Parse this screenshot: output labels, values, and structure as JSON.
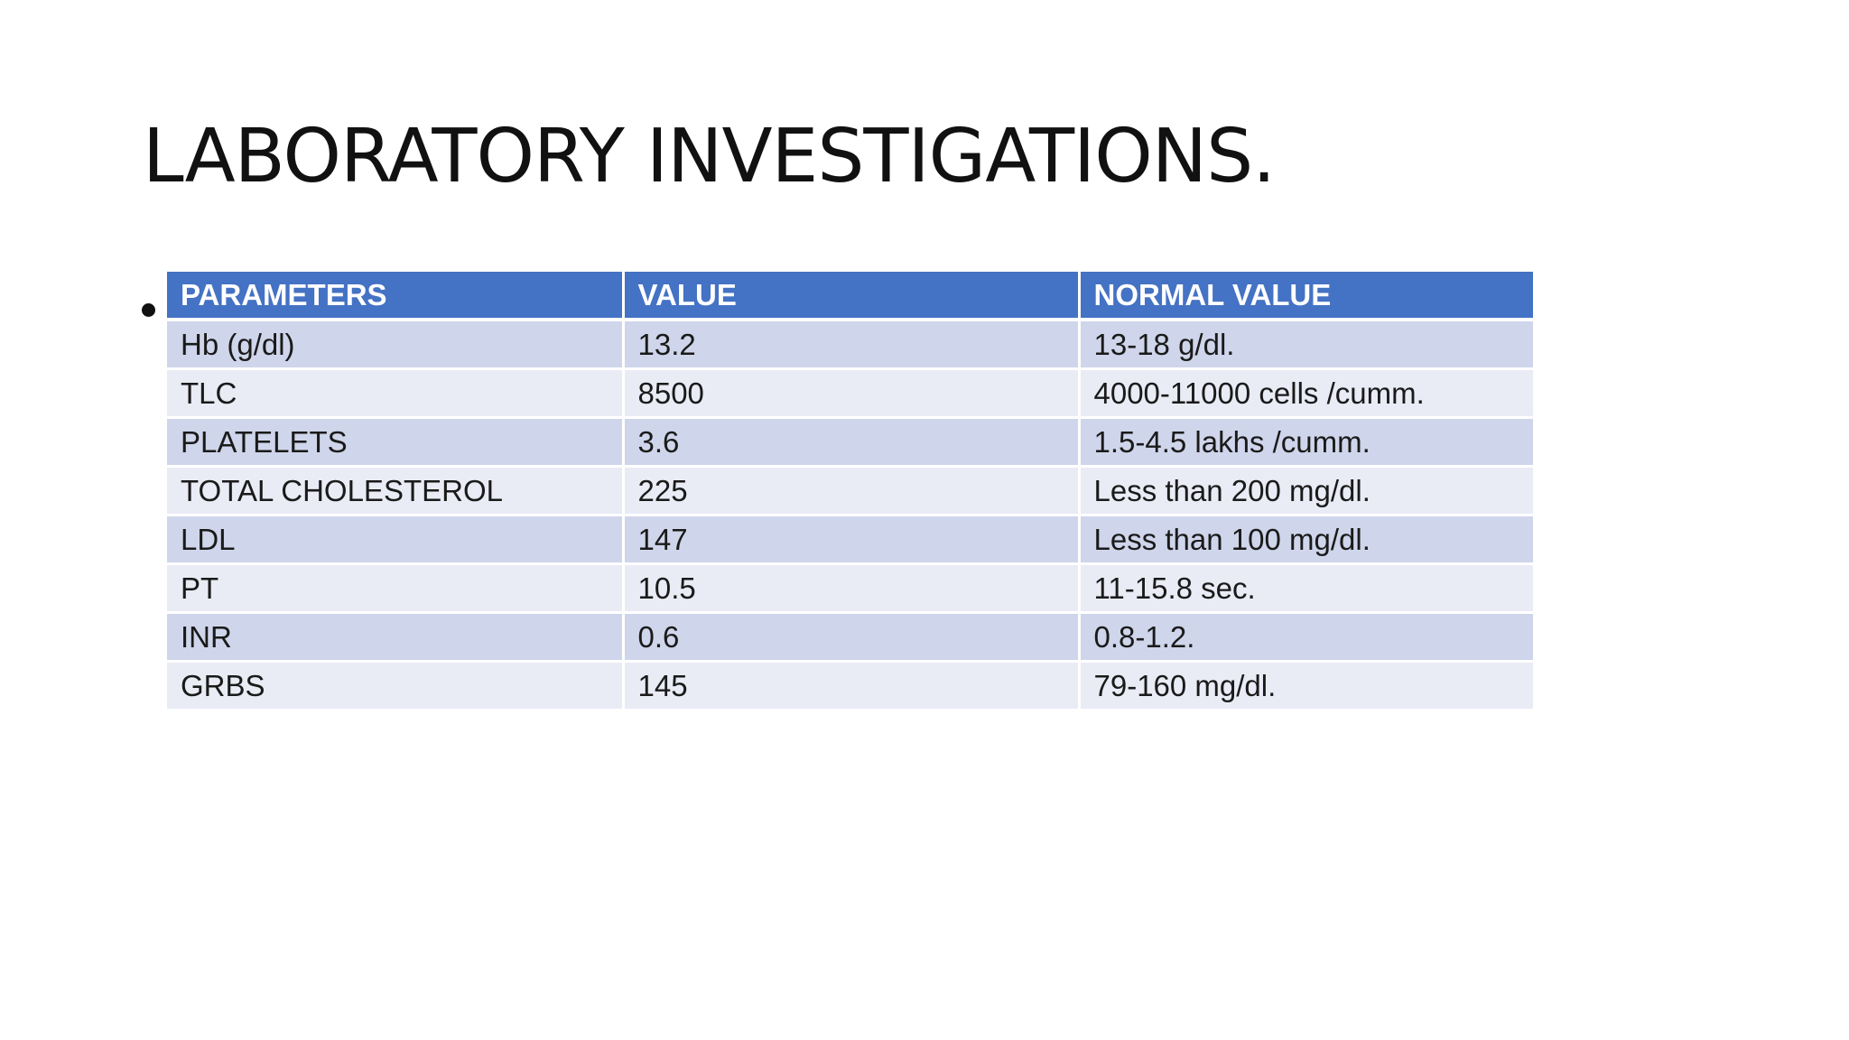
{
  "slide": {
    "title": "LABORATORY INVESTIGATIONS."
  },
  "table": {
    "headers": [
      "PARAMETERS",
      "VALUE",
      "NORMAL VALUE"
    ],
    "rows": [
      [
        "Hb (g/dl)",
        "13.2",
        "13-18 g/dl."
      ],
      [
        "TLC",
        "8500",
        "4000-11000 cells /cumm."
      ],
      [
        "PLATELETS",
        "3.6",
        "1.5-4.5 lakhs /cumm."
      ],
      [
        "TOTAL CHOLESTEROL",
        "225",
        "Less than 200 mg/dl."
      ],
      [
        "LDL",
        "147",
        "Less than 100 mg/dl."
      ],
      [
        "PT",
        "10.5",
        "11-15.8 sec."
      ],
      [
        "INR",
        "0.6",
        "0.8-1.2."
      ],
      [
        "GRBS",
        "145",
        "79-160 mg/dl."
      ]
    ]
  },
  "colors": {
    "header_fill": "#4472c4",
    "row_fill_dark": "#cfd5ea",
    "row_fill_light": "#e9ebf5"
  }
}
